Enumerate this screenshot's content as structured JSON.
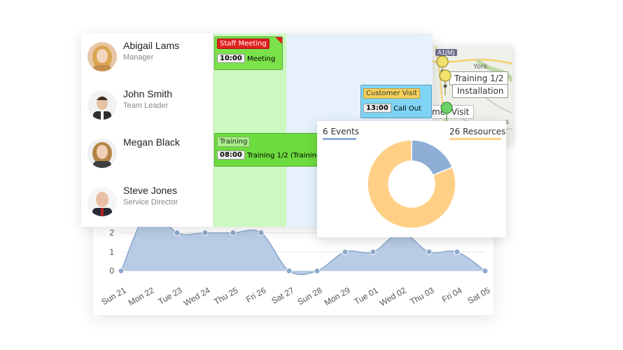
{
  "area_chart": {
    "chart_data": {
      "type": "area",
      "categories": [
        "Sun 21",
        "Mon 22",
        "Tue 23",
        "Wed 24",
        "Thu 25",
        "Fri 26",
        "Sat 27",
        "Sun 28",
        "Mon 29",
        "Tue 01",
        "Wed 02",
        "Thu 03",
        "Fri 04",
        "Sat 05"
      ],
      "values": [
        0,
        3.2,
        2,
        2,
        2,
        2,
        0,
        0,
        1,
        1,
        2,
        1,
        1,
        0
      ],
      "y_ticks": [
        0,
        1,
        2
      ],
      "ylim": [
        0,
        3.2
      ],
      "grid": true,
      "fill_color": "#b8cce6",
      "point_color": "#8ca8cc"
    }
  },
  "scheduler": {
    "people": [
      {
        "name": "Abigail Lams",
        "role": "Manager"
      },
      {
        "name": "John Smith",
        "role": "Team Leader"
      },
      {
        "name": "Megan Black",
        "role": ""
      },
      {
        "name": "Steve Jones",
        "role": "Service Director"
      }
    ],
    "events": [
      {
        "tag": "Staff Meeting",
        "time": "10:00",
        "text": "Meeting",
        "color": "#7be24a",
        "tag_color": "#e02020"
      },
      {
        "tag": "Customer Visit",
        "time": "13:00",
        "text": "Call Out",
        "color": "#7fd4f5",
        "tag_color": "#f5d15a"
      },
      {
        "tag": "Training",
        "time": "08:00",
        "text": "Training 1/2 (Training",
        "color": "#6ddc3e",
        "tag_color": "#a8ef8a"
      }
    ]
  },
  "map": {
    "labels": [
      "Training 1/2",
      "Installation",
      "mer Visit"
    ],
    "text": [
      "York",
      "A1(M)",
      "s"
    ]
  },
  "donut": {
    "events_label": "6 Events",
    "resources_label": "26 Resources",
    "events_color": "#8eaed6",
    "resources_color": "#ffcf85",
    "chart_data": {
      "type": "pie",
      "categories": [
        "Events",
        "Resources"
      ],
      "values": [
        6,
        26
      ],
      "donut": true
    }
  }
}
